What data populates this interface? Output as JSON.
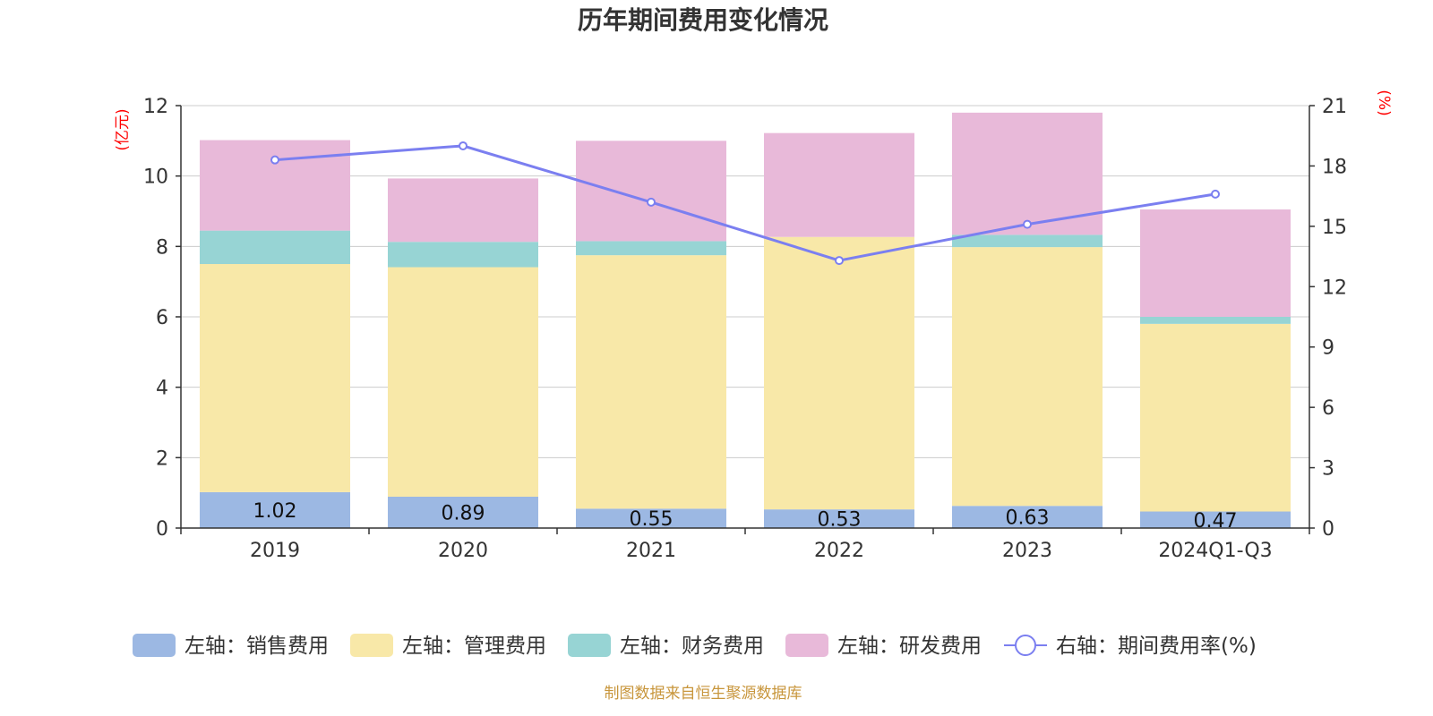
{
  "chart_data": {
    "type": "bar",
    "stacked": true,
    "title": "历年期间费用变化情况",
    "categories": [
      "2019",
      "2020",
      "2021",
      "2022",
      "2023",
      "2024Q1-Q3"
    ],
    "left_axis": {
      "unit": "(亿元)",
      "ylim": [
        0,
        12
      ],
      "ticks": [
        "0",
        "2",
        "4",
        "6",
        "8",
        "10",
        "12"
      ]
    },
    "right_axis": {
      "unit": "(%)",
      "ylim": [
        0,
        21
      ],
      "ticks": [
        "0",
        "3",
        "6",
        "9",
        "12",
        "15",
        "18",
        "21"
      ]
    },
    "series": [
      {
        "name": "左轴：销售费用",
        "axis": "left",
        "color": "#9cb8e3",
        "values": [
          1.02,
          0.89,
          0.55,
          0.53,
          0.63,
          0.47
        ],
        "labels": [
          "1.02",
          "0.89",
          "0.55",
          "0.53",
          "0.63",
          "0.47"
        ]
      },
      {
        "name": "左轴：管理费用",
        "axis": "left",
        "color": "#f8e8a8",
        "values": [
          6.48,
          6.52,
          7.2,
          7.74,
          7.35,
          5.33
        ]
      },
      {
        "name": "左轴：财务费用",
        "axis": "left",
        "color": "#97d4d4",
        "values": [
          0.95,
          0.72,
          0.4,
          0.0,
          0.35,
          0.2
        ]
      },
      {
        "name": "左轴：研发费用",
        "axis": "left",
        "color": "#e8b9d9",
        "values": [
          2.57,
          1.8,
          2.85,
          2.95,
          3.47,
          3.05
        ]
      }
    ],
    "line_series": {
      "name": "右轴：期间费用率(%)",
      "axis": "right",
      "color": "#7b7ff0",
      "values": [
        18.3,
        19.0,
        16.2,
        13.3,
        15.1,
        16.6
      ]
    },
    "grid": true,
    "legend_position": "bottom"
  },
  "footer": {
    "source": "制图数据来自恒生聚源数据库"
  }
}
